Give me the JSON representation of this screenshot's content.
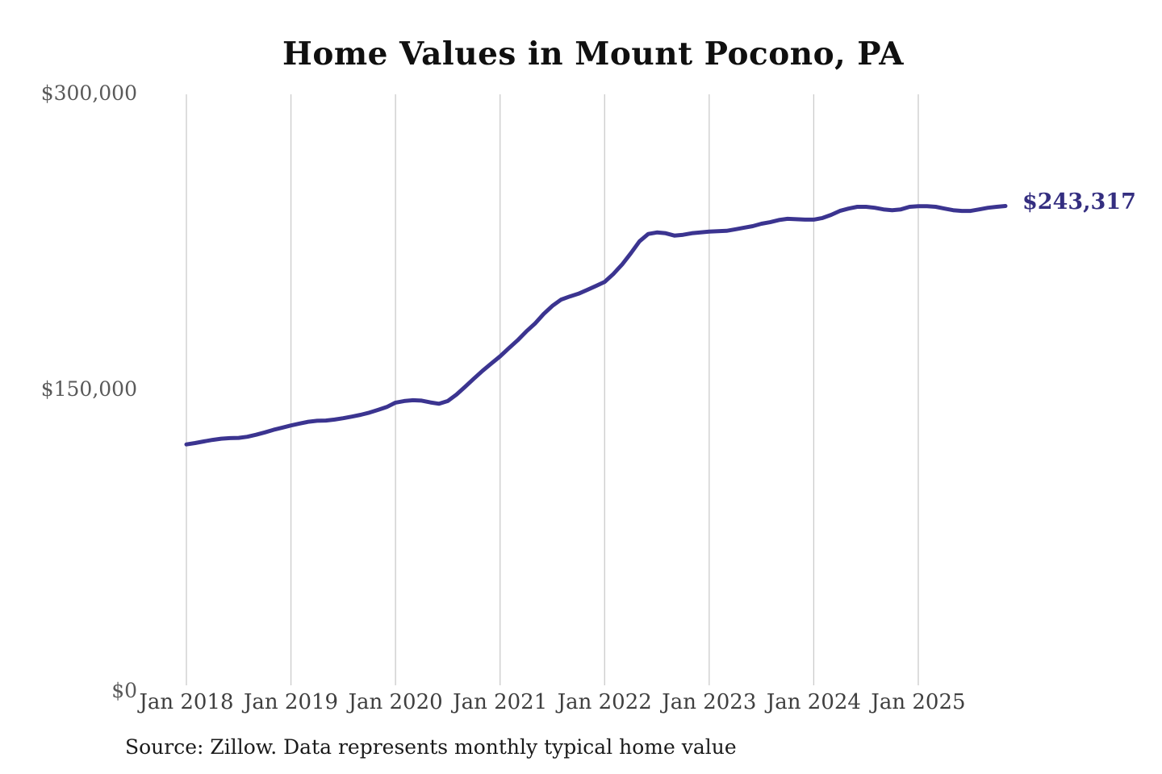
{
  "title": "Home Values in Mount Pocono, PA",
  "source_note": "Source: Zillow. Data represents monthly typical home value",
  "colors": {
    "background": "#ffffff",
    "line": "#3b3490",
    "annotation": "#342e80",
    "grid": "#cbcbcb",
    "title_text": "#101010",
    "y_tick_text": "#595959",
    "x_tick_text": "#3f3f3f",
    "source_text": "#1b1b1b"
  },
  "chart_data": {
    "type": "line",
    "title": "Home Values in Mount Pocono, PA",
    "xlabel": "",
    "ylabel": "",
    "ylim": [
      0,
      300000
    ],
    "grid": "vertical-only",
    "legend": "none",
    "y_ticks": [
      {
        "label": "$0",
        "value": 0
      },
      {
        "label": "$150,000",
        "value": 150000
      },
      {
        "label": "$300,000",
        "value": 300000
      }
    ],
    "x_tick_labels": [
      "Jan 2018",
      "Jan 2019",
      "Jan 2020",
      "Jan 2021",
      "Jan 2022",
      "Jan 2023",
      "Jan 2024",
      "Jan 2025"
    ],
    "latest": {
      "date": "2025-11",
      "value": 243317,
      "label": "$243,317"
    },
    "series": [
      {
        "name": "Monthly typical home value",
        "dates": [
          "2018-01",
          "2018-02",
          "2018-03",
          "2018-04",
          "2018-05",
          "2018-06",
          "2018-07",
          "2018-08",
          "2018-09",
          "2018-10",
          "2018-11",
          "2018-12",
          "2019-01",
          "2019-02",
          "2019-03",
          "2019-04",
          "2019-05",
          "2019-06",
          "2019-07",
          "2019-08",
          "2019-09",
          "2019-10",
          "2019-11",
          "2019-12",
          "2020-01",
          "2020-02",
          "2020-03",
          "2020-04",
          "2020-05",
          "2020-06",
          "2020-07",
          "2020-08",
          "2020-09",
          "2020-10",
          "2020-11",
          "2020-12",
          "2021-01",
          "2021-02",
          "2021-03",
          "2021-04",
          "2021-05",
          "2021-06",
          "2021-07",
          "2021-08",
          "2021-09",
          "2021-10",
          "2021-11",
          "2021-12",
          "2022-01",
          "2022-02",
          "2022-03",
          "2022-04",
          "2022-05",
          "2022-06",
          "2022-07",
          "2022-08",
          "2022-09",
          "2022-10",
          "2022-11",
          "2022-12",
          "2023-01",
          "2023-02",
          "2023-03",
          "2023-04",
          "2023-05",
          "2023-06",
          "2023-07",
          "2023-08",
          "2023-09",
          "2023-10",
          "2023-11",
          "2023-12",
          "2024-01",
          "2024-02",
          "2024-03",
          "2024-04",
          "2024-05",
          "2024-06",
          "2024-07",
          "2024-08",
          "2024-09",
          "2024-10",
          "2024-11",
          "2024-12",
          "2025-01",
          "2025-02",
          "2025-03",
          "2025-04",
          "2025-05",
          "2025-06",
          "2025-07",
          "2025-08",
          "2025-09",
          "2025-10",
          "2025-11"
        ],
        "values": [
          122300,
          123000,
          123800,
          124600,
          125200,
          125500,
          125600,
          126200,
          127200,
          128400,
          129700,
          130800,
          131900,
          132900,
          133800,
          134300,
          134400,
          134900,
          135600,
          136400,
          137300,
          138400,
          139800,
          141300,
          143500,
          144300,
          144700,
          144500,
          143600,
          142900,
          144300,
          147600,
          151600,
          155700,
          159700,
          163400,
          167000,
          171100,
          175100,
          179600,
          183600,
          188500,
          192600,
          195800,
          197400,
          198800,
          200700,
          202700,
          204800,
          208800,
          213600,
          219300,
          225400,
          229100,
          229900,
          229500,
          228300,
          228700,
          229500,
          229900,
          230300,
          230500,
          230700,
          231500,
          232300,
          233100,
          234300,
          235100,
          236200,
          236800,
          236600,
          236400,
          236400,
          237200,
          238800,
          240800,
          242000,
          242900,
          242900,
          242400,
          241600,
          241200,
          241600,
          242900,
          243200,
          243200,
          242900,
          242000,
          241200,
          240800,
          240800,
          241600,
          242400,
          242900,
          243317
        ]
      }
    ]
  }
}
